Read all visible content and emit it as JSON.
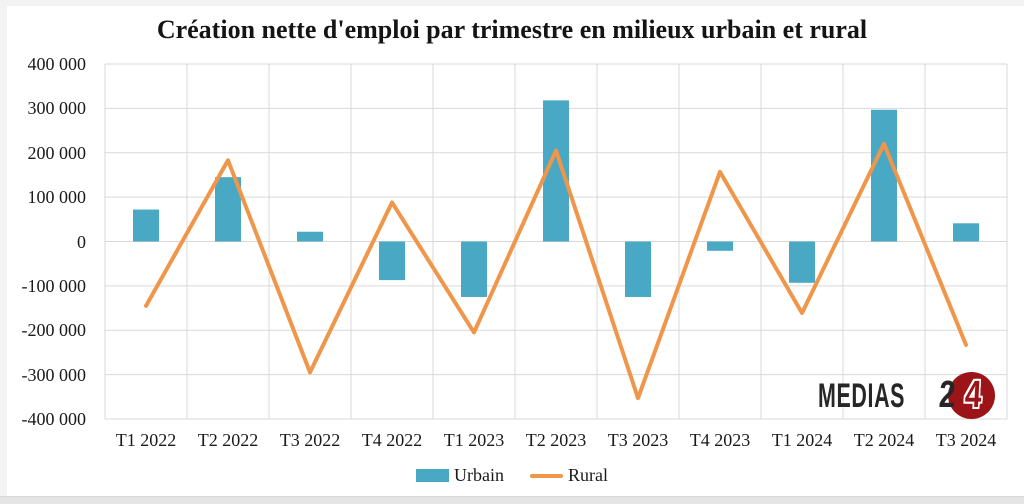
{
  "chart_data": {
    "type": "combo",
    "title": "Création nette d'emploi par trimestre en milieux urbain et rural",
    "categories": [
      "T1 2022",
      "T2 2022",
      "T3 2022",
      "T4 2022",
      "T1 2023",
      "T2 2023",
      "T3 2023",
      "T4 2023",
      "T1 2024",
      "T2 2024",
      "T3 2024"
    ],
    "series": [
      {
        "name": "Urbain",
        "type": "bar",
        "color": "#49A8C3",
        "values": [
          72000,
          145000,
          22000,
          -87000,
          -125000,
          318000,
          -125000,
          -21000,
          -93000,
          297000,
          41000
        ]
      },
      {
        "name": "Rural",
        "type": "line",
        "color": "#F0964B",
        "values": [
          -145000,
          183000,
          -295000,
          88000,
          -205000,
          205000,
          -353000,
          157000,
          -161000,
          220000,
          -233000
        ]
      }
    ],
    "y_axis": {
      "min": -400000,
      "max": 400000,
      "step": 100000,
      "tick_labels": [
        "400 000",
        "300 000",
        "200 000",
        "100 000",
        "0",
        "-100 000",
        "-200 000",
        "-300 000",
        "-400 000"
      ]
    },
    "grid": true,
    "grid_color": "#d9d9d9",
    "legend_position": "bottom"
  },
  "watermark": {
    "brand": "MEDIAS",
    "badge": "24",
    "brand_color": "#262626",
    "badge_bg": "#9c1418"
  }
}
